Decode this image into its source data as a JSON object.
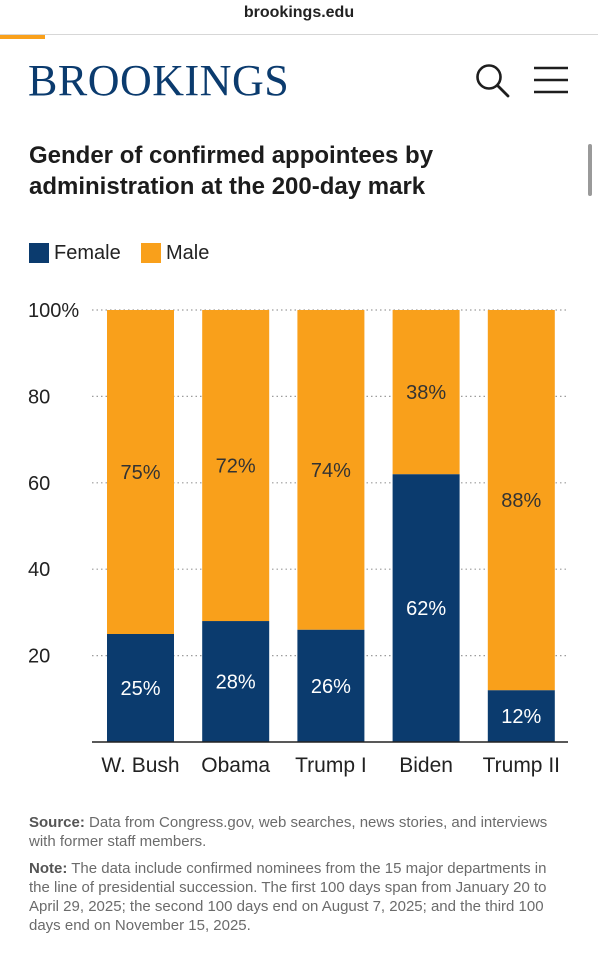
{
  "browser": {
    "url": "brookings.edu"
  },
  "header": {
    "brand": "BROOKINGS",
    "search_icon": "search-icon",
    "menu_icon": "hamburger-menu-icon"
  },
  "colors": {
    "female": "#0b3b6e",
    "male": "#f9a01b",
    "brand": "#0b3b6e",
    "accent": "#f9a01b"
  },
  "chart_data": {
    "type": "bar",
    "stacked": true,
    "title": "Gender of confirmed appointees by administration at the 200-day mark",
    "categories": [
      "W. Bush",
      "Obama",
      "Trump I",
      "Biden",
      "Trump II"
    ],
    "series": [
      {
        "name": "Female",
        "values": [
          25,
          28,
          26,
          62,
          12
        ],
        "labels": [
          "25%",
          "28%",
          "26%",
          "62%",
          "12%"
        ]
      },
      {
        "name": "Male",
        "values": [
          75,
          72,
          74,
          38,
          88
        ],
        "labels": [
          "75%",
          "72%",
          "74%",
          "38%",
          "88%"
        ]
      }
    ],
    "ylim": [
      0,
      100
    ],
    "yticks": [
      20,
      40,
      60,
      80,
      100
    ],
    "ytick_labels": [
      "20",
      "40",
      "60",
      "80",
      "100%"
    ],
    "grid": true,
    "legend": "top-left"
  },
  "footer": {
    "source_label": "Source:",
    "source_text": " Data from Congress.gov, web searches, news stories, and interviews with former staff members.",
    "note_label": "Note:",
    "note_text": " The data include confirmed nominees from the 15 major departments in the line of presidential succession. The first 100 days span from January 20 to April 29, 2025; the second 100 days end on August 7, 2025; and the third 100 days end on November 15, 2025."
  }
}
